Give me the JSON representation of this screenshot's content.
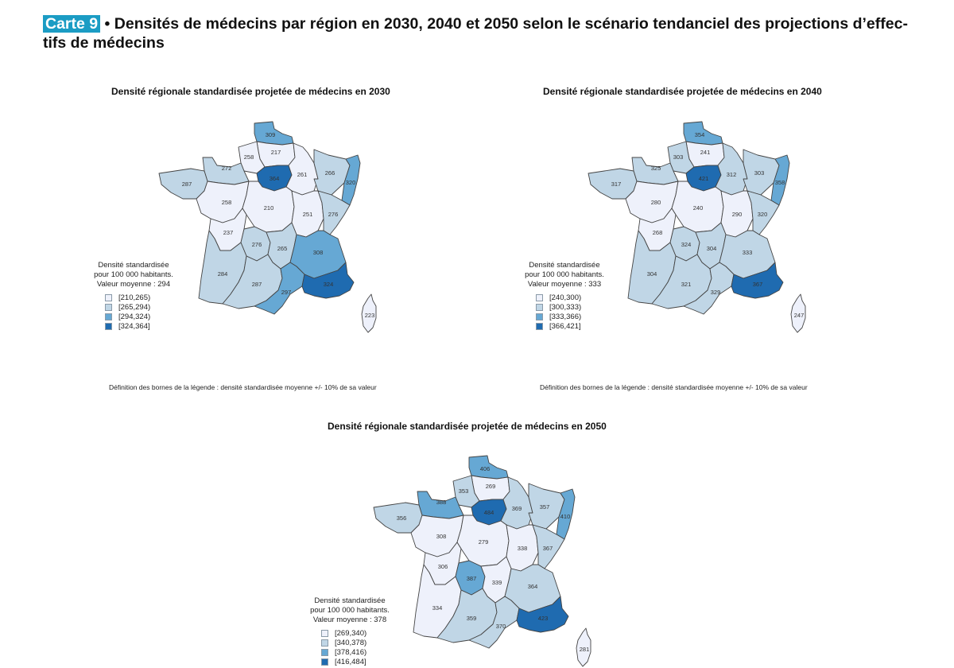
{
  "header": {
    "badge": "Carte 9",
    "title": " • Densités de médecins par région en 2030, 2040 et 2050 selon le scénario tendanciel des projections d’effec-tifs de médecins"
  },
  "colors": {
    "badge": "#1b9cc4",
    "class1": "#eef1fb",
    "class2": "#c0d6e6",
    "class3": "#66a8d4",
    "class4": "#1f6bb0"
  },
  "chart_data": [
    {
      "type": "choropleth",
      "title": "Densité régionale standardisée projetée de médecins en 2030",
      "year": 2030,
      "legend_title": [
        "Densité standardisée",
        "pour 100 000 habitants.",
        "Valeur moyenne : 294"
      ],
      "mean": 294,
      "classes": [
        "[210,265)",
        "[265,294)",
        "[294,324)",
        "[324,364]"
      ],
      "footnote": "Définition des bornes de la légende : densité standardisée moyenne +/- 10% de sa valeur",
      "regions": {
        "nord_pas_de_calais": {
          "value": 309,
          "class": 3
        },
        "picardie": {
          "value": 217,
          "class": 1
        },
        "haute_normandie": {
          "value": 258,
          "class": 1
        },
        "basse_normandie": {
          "value": 272,
          "class": 2
        },
        "bretagne": {
          "value": 287,
          "class": 2
        },
        "ile_de_france": {
          "value": 364,
          "class": 4
        },
        "champagne_ardenne": {
          "value": 261,
          "class": 1
        },
        "lorraine": {
          "value": 266,
          "class": 2
        },
        "alsace": {
          "value": 320,
          "class": 3
        },
        "pays_de_la_loire": {
          "value": 258,
          "class": 1
        },
        "centre": {
          "value": 210,
          "class": 1
        },
        "bourgogne": {
          "value": 251,
          "class": 1
        },
        "franche_comte": {
          "value": 276,
          "class": 2
        },
        "poitou_charentes": {
          "value": 237,
          "class": 1
        },
        "limousin": {
          "value": 276,
          "class": 2
        },
        "auvergne": {
          "value": 265,
          "class": 2
        },
        "rhone_alpes": {
          "value": 308,
          "class": 3
        },
        "aquitaine": {
          "value": 284,
          "class": 2
        },
        "midi_pyrenees": {
          "value": 287,
          "class": 2
        },
        "languedoc_roussillon": {
          "value": 297,
          "class": 3
        },
        "paca": {
          "value": 324,
          "class": 4
        },
        "corse": {
          "value": 223,
          "class": 1
        }
      }
    },
    {
      "type": "choropleth",
      "title": "Densité régionale standardisée projetée de médecins en 2040",
      "year": 2040,
      "legend_title": [
        "Densité standardisée",
        "pour 100 000 habitants.",
        "Valeur moyenne : 333"
      ],
      "mean": 333,
      "classes": [
        "[240,300)",
        "[300,333)",
        "[333,366)",
        "[366,421]"
      ],
      "footnote": "Définition des bornes de la légende : densité standardisée moyenne +/- 10% de sa valeur",
      "regions": {
        "nord_pas_de_calais": {
          "value": 354,
          "class": 3
        },
        "picardie": {
          "value": 241,
          "class": 1
        },
        "haute_normandie": {
          "value": 303,
          "class": 2
        },
        "basse_normandie": {
          "value": 325,
          "class": 2
        },
        "bretagne": {
          "value": 317,
          "class": 2
        },
        "ile_de_france": {
          "value": 421,
          "class": 4
        },
        "champagne_ardenne": {
          "value": 312,
          "class": 2
        },
        "lorraine": {
          "value": 303,
          "class": 2
        },
        "alsace": {
          "value": 358,
          "class": 3
        },
        "pays_de_la_loire": {
          "value": 280,
          "class": 1
        },
        "centre": {
          "value": 240,
          "class": 1
        },
        "bourgogne": {
          "value": 290,
          "class": 1
        },
        "franche_comte": {
          "value": 320,
          "class": 2
        },
        "poitou_charentes": {
          "value": 268,
          "class": 1
        },
        "limousin": {
          "value": 324,
          "class": 2
        },
        "auvergne": {
          "value": 304,
          "class": 2
        },
        "rhone_alpes": {
          "value": 333,
          "class": 2
        },
        "aquitaine": {
          "value": 304,
          "class": 2
        },
        "midi_pyrenees": {
          "value": 321,
          "class": 2
        },
        "languedoc_roussillon": {
          "value": 329,
          "class": 2
        },
        "paca": {
          "value": 367,
          "class": 4
        },
        "corse": {
          "value": 247,
          "class": 1
        }
      }
    },
    {
      "type": "choropleth",
      "title": "Densité régionale standardisée projetée de médecins en 2050",
      "year": 2050,
      "legend_title": [
        "Densité standardisée",
        "pour 100 000 habitants.",
        "Valeur moyenne : 378"
      ],
      "mean": 378,
      "classes": [
        "[269,340)",
        "[340,378)",
        "[378,416)",
        "[416,484]"
      ],
      "regions": {
        "nord_pas_de_calais": {
          "value": 406,
          "class": 3
        },
        "picardie": {
          "value": 269,
          "class": 1
        },
        "haute_normandie": {
          "value": 353,
          "class": 2
        },
        "basse_normandie": {
          "value": 388,
          "class": 3
        },
        "bretagne": {
          "value": 356,
          "class": 2
        },
        "ile_de_france": {
          "value": 484,
          "class": 4
        },
        "champagne_ardenne": {
          "value": 369,
          "class": 2
        },
        "lorraine": {
          "value": 357,
          "class": 2
        },
        "alsace": {
          "value": 410,
          "class": 3
        },
        "pays_de_la_loire": {
          "value": 308,
          "class": 1
        },
        "centre": {
          "value": 279,
          "class": 1
        },
        "bourgogne": {
          "value": 338,
          "class": 1
        },
        "franche_comte": {
          "value": 367,
          "class": 2
        },
        "poitou_charentes": {
          "value": 306,
          "class": 1
        },
        "limousin": {
          "value": 387,
          "class": 3
        },
        "auvergne": {
          "value": 339,
          "class": 1
        },
        "rhone_alpes": {
          "value": 364,
          "class": 2
        },
        "aquitaine": {
          "value": 334,
          "class": 1
        },
        "midi_pyrenees": {
          "value": 359,
          "class": 2
        },
        "languedoc_roussillon": {
          "value": 370,
          "class": 2
        },
        "paca": {
          "value": 423,
          "class": 4
        },
        "corse": {
          "value": 281,
          "class": 1
        }
      }
    }
  ]
}
